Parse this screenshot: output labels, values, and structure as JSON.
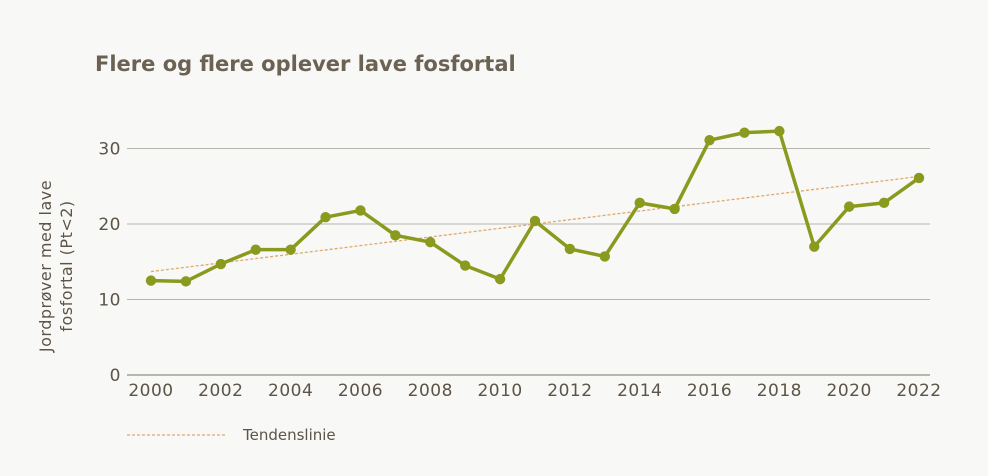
{
  "chart_data": {
    "type": "line",
    "title": "Flere og flere oplever lave fosfortal",
    "ylabel_lines": [
      "Jordprøver med lave",
      "fosfortal (Pt<2)"
    ],
    "x": [
      2000,
      2001,
      2002,
      2003,
      2004,
      2005,
      2006,
      2007,
      2008,
      2009,
      2010,
      2011,
      2012,
      2013,
      2014,
      2015,
      2016,
      2017,
      2018,
      2019,
      2020,
      2021,
      2022
    ],
    "x_ticks": [
      "2000",
      "2002",
      "2004",
      "2006",
      "2008",
      "2010",
      "2012",
      "2014",
      "2016",
      "2018",
      "2020",
      "2022"
    ],
    "y_ticks": [
      "0",
      "10",
      "20",
      "30"
    ],
    "ylim": [
      0,
      30
    ],
    "grid": true,
    "series": [
      {
        "values": [
          12.5,
          12.4,
          14.7,
          16.6,
          16.6,
          20.9,
          21.8,
          18.5,
          17.6,
          14.5,
          12.7,
          20.4,
          16.7,
          15.7,
          22.8,
          22.0,
          31.1,
          32.1,
          32.3,
          17.0,
          22.3,
          22.8,
          26.1
        ],
        "color": "#8a9a1e"
      }
    ],
    "trendline": {
      "name": "Tendenslinie",
      "start": 13.7,
      "end": 26.3,
      "color": "#e0a96a"
    },
    "legend": "bottom-left"
  }
}
